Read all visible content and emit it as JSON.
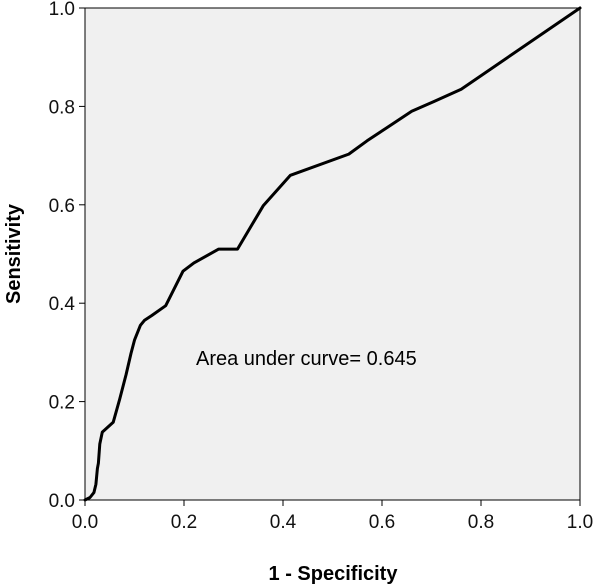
{
  "chart_data": {
    "type": "line",
    "xlabel": "1 - Specificity",
    "ylabel": "Sensitivity",
    "xlim": [
      0,
      1
    ],
    "ylim": [
      0,
      1
    ],
    "x_ticks": [
      "0.0",
      "0.2",
      "0.4",
      "0.6",
      "0.8",
      "1.0"
    ],
    "y_ticks": [
      "0.0",
      "0.2",
      "0.4",
      "0.6",
      "0.8",
      "1.0"
    ],
    "annotation": "Area under curve= 0.645",
    "background_color": "#f0f0f0",
    "line_color": "#000000",
    "grid": false,
    "series": [
      {
        "x": [
          0.0,
          0.01,
          0.018,
          0.022,
          0.025,
          0.027,
          0.03,
          0.035,
          0.057,
          0.07,
          0.083,
          0.093,
          0.1,
          0.112,
          0.12,
          0.135,
          0.163,
          0.198,
          0.22,
          0.27,
          0.308,
          0.36,
          0.415,
          0.533,
          0.57,
          0.66,
          0.705,
          0.76,
          1.0
        ],
        "y": [
          0.0,
          0.005,
          0.015,
          0.032,
          0.064,
          0.075,
          0.114,
          0.138,
          0.158,
          0.205,
          0.255,
          0.298,
          0.325,
          0.355,
          0.365,
          0.375,
          0.395,
          0.465,
          0.482,
          0.51,
          0.51,
          0.598,
          0.66,
          0.703,
          0.73,
          0.79,
          0.81,
          0.835,
          1.0
        ]
      }
    ]
  }
}
